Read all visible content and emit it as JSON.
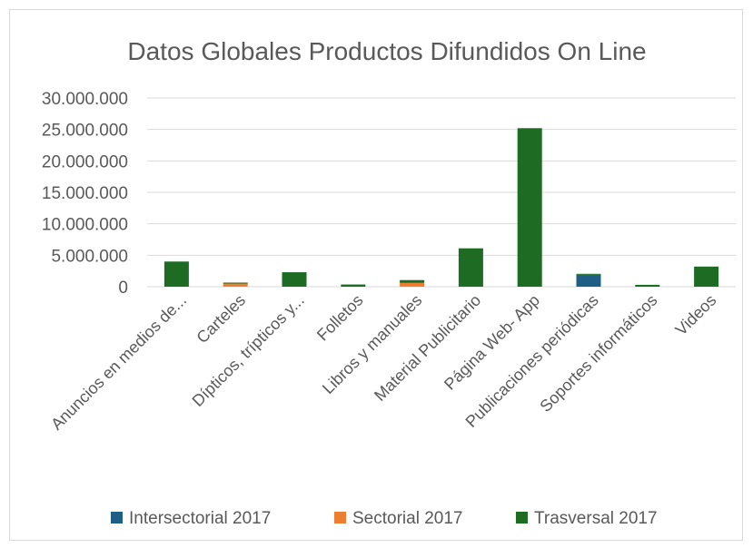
{
  "chart_data": {
    "type": "bar",
    "stacked": true,
    "title": "Datos Globales Productos Difundidos On Line",
    "xlabel": "",
    "ylabel": "",
    "ylim": [
      0,
      30000000
    ],
    "yticks": [
      0,
      5000000,
      10000000,
      15000000,
      20000000,
      25000000,
      30000000
    ],
    "ytick_labels": [
      "0",
      "5.000.000",
      "10.000.000",
      "15.000.000",
      "20.000.000",
      "25.000.000",
      "30.000.000"
    ],
    "grid": true,
    "legend_position": "bottom",
    "categories": [
      "Anuncios en medios de...",
      "Carteles",
      "Dípticos, trípticos y...",
      "Folletos",
      "Libros y manuales",
      "Material Publicitario",
      "Página Web- App",
      "Publicaciones periódicas",
      "Soportes informáticos",
      "Videos"
    ],
    "series": [
      {
        "name": "Intersectorial 2017",
        "color": "#1f5f86",
        "values": [
          0,
          0,
          0,
          0,
          0,
          0,
          0,
          1900000,
          0,
          0
        ]
      },
      {
        "name": "Sectorial 2017",
        "color": "#ed7d31",
        "values": [
          0,
          500000,
          0,
          0,
          600000,
          0,
          0,
          0,
          0,
          0
        ]
      },
      {
        "name": "Trasversal 2017",
        "color": "#1e6b24",
        "values": [
          4000000,
          150000,
          2300000,
          350000,
          450000,
          6100000,
          25200000,
          150000,
          300000,
          3200000
        ]
      }
    ]
  }
}
